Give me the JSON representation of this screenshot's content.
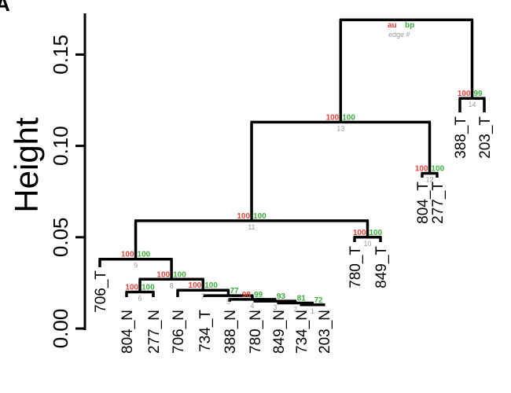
{
  "panel_letter": "A",
  "colors": {
    "au": "#e8443a",
    "bp": "#3aae3a",
    "edge": "#9a9a9a"
  },
  "legend": {
    "au": "au",
    "bp": "bp",
    "edge": "edge #"
  },
  "chart_data": {
    "type": "dendrogram",
    "ylabel": "Height",
    "ylim": [
      0,
      0.17
    ],
    "yticks": [
      0.0,
      0.05,
      0.1,
      0.15
    ],
    "ytick_labels": [
      "0.00",
      "0.05",
      "0.10",
      "0.15"
    ],
    "leaves": [
      "706_T",
      "804_N",
      "277_N",
      "706_N",
      "734_T",
      "388_N",
      "780_N",
      "849_N",
      "734_N",
      "203_N",
      "780_T",
      "849_T",
      "804_T",
      "277_T",
      "388_T",
      "203_T"
    ],
    "leaf_labels_top": [
      "706_T",
      "780_T",
      "849_T",
      "804_T",
      "277_T",
      "388_T",
      "203_T"
    ],
    "merges": [
      {
        "edge": "1",
        "left": "734_N",
        "right": "203_N",
        "height": 0.013,
        "au": "",
        "bp": "72"
      },
      {
        "edge": "2",
        "left": "849_N",
        "right": "e1",
        "height": 0.014,
        "au": "",
        "bp": "81"
      },
      {
        "edge": "3",
        "left": "780_N",
        "right": "e2",
        "height": 0.015,
        "au": "",
        "bp": "93"
      },
      {
        "edge": "4",
        "left": "388_N",
        "right": "e3",
        "height": 0.016,
        "au": "98",
        "bp": "99"
      },
      {
        "edge": "5",
        "left": "734_T",
        "right": "e4",
        "height": 0.018,
        "au": "",
        "bp": "77"
      },
      {
        "edge": "6",
        "left": "804_N",
        "right": "277_N",
        "height": 0.02,
        "au": "100",
        "bp": "100"
      },
      {
        "edge": "7",
        "left": "706_N",
        "right": "e5",
        "height": 0.021,
        "au": "100",
        "bp": "100"
      },
      {
        "edge": "8",
        "left": "e6",
        "right": "e7",
        "height": 0.027,
        "au": "100",
        "bp": "100"
      },
      {
        "edge": "9",
        "left": "706_T",
        "right": "e8",
        "height": 0.038,
        "au": "100",
        "bp": "100"
      },
      {
        "edge": "10",
        "left": "780_T",
        "right": "849_T",
        "height": 0.05,
        "au": "100",
        "bp": "100"
      },
      {
        "edge": "11",
        "left": "e9",
        "right": "e10",
        "height": 0.059,
        "au": "100",
        "bp": "100"
      },
      {
        "edge": "12",
        "left": "804_T",
        "right": "277_T",
        "height": 0.085,
        "au": "100",
        "bp": "100"
      },
      {
        "edge": "13",
        "left": "e11",
        "right": "e12",
        "height": 0.113,
        "au": "100",
        "bp": "100"
      },
      {
        "edge": "14",
        "left": "388_T",
        "right": "203_T",
        "height": 0.126,
        "au": "100",
        "bp": "99"
      },
      {
        "edge": "",
        "left": "e13",
        "right": "e14",
        "height": 0.169,
        "au": "",
        "bp": ""
      }
    ]
  }
}
